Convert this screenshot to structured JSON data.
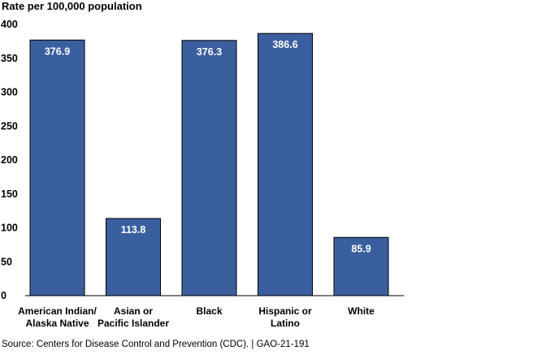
{
  "chart_data": {
    "type": "bar",
    "title": "",
    "ylabel": "Rate per 100,000 population",
    "xlabel": "",
    "categories": [
      [
        "American Indian/",
        "Alaska Native"
      ],
      [
        "Asian or",
        "Pacific Islander"
      ],
      [
        "Black"
      ],
      [
        "Hispanic or",
        "Latino"
      ],
      [
        "White"
      ]
    ],
    "values": [
      376.9,
      113.8,
      376.3,
      386.6,
      85.9
    ],
    "data_labels": [
      "376.9",
      "113.8",
      "376.3",
      "386.6",
      "85.9"
    ],
    "ylim": [
      0,
      400
    ],
    "yticks": [
      0,
      50,
      100,
      150,
      200,
      250,
      300,
      350,
      400
    ],
    "ytick_labels": [
      "0",
      "50",
      "100",
      "150",
      "200",
      "250",
      "300",
      "350",
      "400"
    ],
    "grid": false,
    "legend": "none",
    "bar_color": "#3a5f9f",
    "bar_edge_color": "#000000",
    "data_label_color": "#ffffff"
  },
  "source": "Source: Centers for Disease Control and Prevention (CDC).  |  GAO-21-191"
}
